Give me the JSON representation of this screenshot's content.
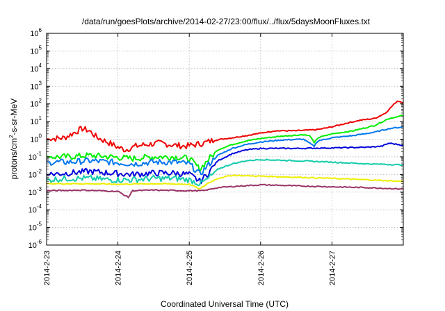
{
  "chart_data": {
    "type": "line",
    "title": "/data/run/goesPlots/archive/2014-02-27/23:00/flux/../flux/5daysMoonFluxes.txt",
    "xlabel": "Coordinated Universal Time (UTC)",
    "ylabel_parts": [
      "protons/cm",
      "2",
      "-s-sr-MeV"
    ],
    "x_unit": "days since 2014-2-23 00:00 UTC",
    "xlim": [
      0,
      5.0
    ],
    "x_ticks": [
      {
        "x": 0,
        "label": "2014-2-23"
      },
      {
        "x": 1,
        "label": "2014-2-24"
      },
      {
        "x": 2,
        "label": "2014-2-25"
      },
      {
        "x": 3,
        "label": "2014-2-26"
      },
      {
        "x": 4,
        "label": "2014-2-27"
      }
    ],
    "y_scale": "log",
    "ylim": [
      1e-06,
      1000000.0
    ],
    "y_ticks": [
      {
        "exp": "6"
      },
      {
        "exp": "5"
      },
      {
        "exp": "4"
      },
      {
        "exp": "3"
      },
      {
        "exp": "2"
      },
      {
        "exp": "1"
      },
      {
        "exp": "0"
      },
      {
        "exp": "-1"
      },
      {
        "exp": "-2"
      },
      {
        "exp": "-3"
      },
      {
        "exp": "-4"
      },
      {
        "exp": "-5"
      },
      {
        "exp": "-6"
      }
    ],
    "grid": true,
    "series": [
      {
        "color": "#ee0000",
        "points": [
          [
            0,
            1.0
          ],
          [
            0.25,
            1.2
          ],
          [
            0.4,
            2.5
          ],
          [
            0.5,
            4
          ],
          [
            0.6,
            3
          ],
          [
            0.7,
            1.3
          ],
          [
            0.85,
            0.7
          ],
          [
            1.0,
            0.35
          ],
          [
            1.1,
            0.25
          ],
          [
            1.25,
            0.4
          ],
          [
            1.4,
            0.5
          ],
          [
            1.6,
            0.6
          ],
          [
            1.8,
            0.45
          ],
          [
            1.95,
            0.4
          ],
          [
            2.1,
            0.5
          ],
          [
            2.2,
            0.6
          ],
          [
            2.3,
            0.8
          ],
          [
            2.45,
            1.0
          ],
          [
            2.6,
            1.2
          ],
          [
            2.8,
            1.6
          ],
          [
            3.0,
            2.2
          ],
          [
            3.2,
            3.0
          ],
          [
            3.5,
            3.0
          ],
          [
            3.8,
            3.5
          ],
          [
            4.0,
            5
          ],
          [
            4.2,
            8
          ],
          [
            4.4,
            12
          ],
          [
            4.6,
            15
          ],
          [
            4.75,
            30
          ],
          [
            4.85,
            80
          ],
          [
            4.92,
            150
          ],
          [
            5.0,
            120
          ]
        ]
      },
      {
        "color": "#00ee00",
        "points": [
          [
            0,
            0.1
          ],
          [
            0.3,
            0.1
          ],
          [
            0.6,
            0.12
          ],
          [
            0.9,
            0.1
          ],
          [
            1.2,
            0.08
          ],
          [
            1.5,
            0.1
          ],
          [
            1.8,
            0.1
          ],
          [
            2.0,
            0.08
          ],
          [
            2.15,
            0.02
          ],
          [
            2.25,
            0.06
          ],
          [
            2.4,
            0.25
          ],
          [
            2.6,
            0.5
          ],
          [
            2.8,
            0.8
          ],
          [
            3.0,
            1.1
          ],
          [
            3.3,
            1.5
          ],
          [
            3.6,
            1.8
          ],
          [
            3.7,
            1.5
          ],
          [
            3.75,
            0.6
          ],
          [
            3.8,
            1.2
          ],
          [
            4.0,
            2.0
          ],
          [
            4.3,
            3.0
          ],
          [
            4.6,
            6
          ],
          [
            4.8,
            15
          ],
          [
            5.0,
            22
          ]
        ]
      },
      {
        "color": "#0077ee",
        "points": [
          [
            0,
            0.05
          ],
          [
            0.3,
            0.05
          ],
          [
            0.6,
            0.06
          ],
          [
            0.9,
            0.05
          ],
          [
            1.2,
            0.04
          ],
          [
            1.5,
            0.05
          ],
          [
            1.8,
            0.05
          ],
          [
            2.0,
            0.04
          ],
          [
            2.15,
            0.01
          ],
          [
            2.25,
            0.03
          ],
          [
            2.4,
            0.12
          ],
          [
            2.6,
            0.3
          ],
          [
            2.8,
            0.5
          ],
          [
            3.0,
            0.7
          ],
          [
            3.3,
            0.9
          ],
          [
            3.6,
            1.0
          ],
          [
            3.75,
            0.4
          ],
          [
            3.8,
            0.8
          ],
          [
            4.0,
            1.2
          ],
          [
            4.3,
            1.6
          ],
          [
            4.6,
            2.5
          ],
          [
            4.8,
            4
          ],
          [
            5.0,
            5
          ]
        ]
      },
      {
        "color": "#0000dd",
        "points": [
          [
            0,
            0.01
          ],
          [
            0.3,
            0.012
          ],
          [
            0.6,
            0.015
          ],
          [
            0.9,
            0.012
          ],
          [
            1.2,
            0.01
          ],
          [
            1.5,
            0.012
          ],
          [
            1.8,
            0.012
          ],
          [
            2.0,
            0.01
          ],
          [
            2.15,
            0.004
          ],
          [
            2.25,
            0.01
          ],
          [
            2.4,
            0.06
          ],
          [
            2.6,
            0.15
          ],
          [
            2.8,
            0.25
          ],
          [
            3.0,
            0.3
          ],
          [
            3.5,
            0.3
          ],
          [
            4.0,
            0.32
          ],
          [
            4.5,
            0.35
          ],
          [
            4.7,
            0.4
          ],
          [
            4.8,
            0.6
          ],
          [
            5.0,
            0.45
          ]
        ]
      },
      {
        "color": "#11ccaa",
        "points": [
          [
            0,
            0.005
          ],
          [
            0.3,
            0.006
          ],
          [
            0.6,
            0.006
          ],
          [
            0.9,
            0.005
          ],
          [
            1.2,
            0.005
          ],
          [
            1.5,
            0.006
          ],
          [
            1.8,
            0.006
          ],
          [
            2.0,
            0.005
          ],
          [
            2.15,
            0.003
          ],
          [
            2.25,
            0.005
          ],
          [
            2.4,
            0.02
          ],
          [
            2.6,
            0.04
          ],
          [
            2.8,
            0.06
          ],
          [
            3.0,
            0.07
          ],
          [
            3.5,
            0.06
          ],
          [
            4.0,
            0.05
          ],
          [
            4.5,
            0.04
          ],
          [
            5.0,
            0.035
          ]
        ]
      },
      {
        "color": "#eeee00",
        "points": [
          [
            0,
            0.003
          ],
          [
            0.5,
            0.003
          ],
          [
            1.0,
            0.0028
          ],
          [
            1.5,
            0.003
          ],
          [
            2.0,
            0.0028
          ],
          [
            2.15,
            0.0015
          ],
          [
            2.25,
            0.003
          ],
          [
            2.4,
            0.006
          ],
          [
            2.6,
            0.009
          ],
          [
            3.0,
            0.008
          ],
          [
            3.5,
            0.007
          ],
          [
            4.0,
            0.006
          ],
          [
            4.5,
            0.005
          ],
          [
            5.0,
            0.004
          ]
        ]
      },
      {
        "color": "#993366",
        "points": [
          [
            0,
            0.0012
          ],
          [
            0.5,
            0.0013
          ],
          [
            1.0,
            0.0011
          ],
          [
            1.15,
            0.0005
          ],
          [
            1.2,
            0.0012
          ],
          [
            1.5,
            0.0013
          ],
          [
            2.0,
            0.0012
          ],
          [
            2.2,
            0.0012
          ],
          [
            2.4,
            0.0018
          ],
          [
            2.7,
            0.0022
          ],
          [
            3.0,
            0.0026
          ],
          [
            3.3,
            0.0024
          ],
          [
            3.6,
            0.0022
          ],
          [
            4.0,
            0.002
          ],
          [
            4.5,
            0.0018
          ],
          [
            5.0,
            0.0015
          ]
        ]
      }
    ]
  }
}
